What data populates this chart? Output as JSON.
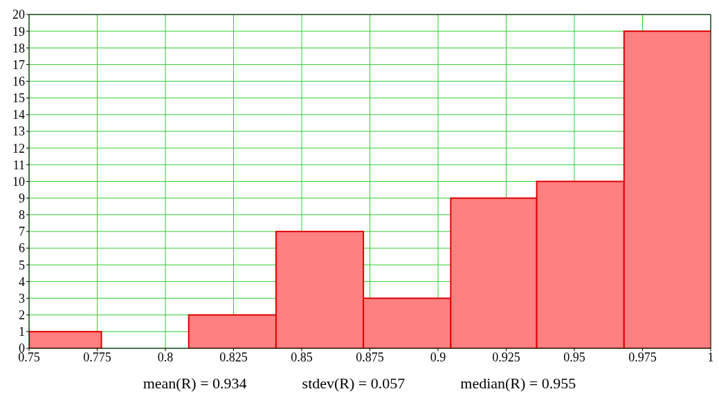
{
  "chart_data": {
    "type": "histogram",
    "bins": [
      0.75,
      0.7765,
      0.8085,
      0.8405,
      0.8725,
      0.9045,
      0.936,
      0.968,
      1
    ],
    "values": [
      1,
      0,
      2,
      7,
      3,
      9,
      10,
      19
    ],
    "color": "#ff8080",
    "xlim": [
      0.75,
      1
    ],
    "xticks": [
      0.75,
      0.775,
      0.8,
      0.825,
      0.85,
      0.875,
      0.9,
      0.925,
      0.95,
      0.975,
      1
    ],
    "ylim": [
      0,
      20
    ],
    "yticks": [
      0,
      1,
      2,
      3,
      4,
      5,
      6,
      7,
      8,
      9,
      10,
      11,
      12,
      13,
      14,
      15,
      16,
      17,
      18,
      19,
      20
    ],
    "grid": true,
    "annotations": [
      "mean(R) = 0.934",
      "stdev(R) = 0.057",
      "median(R) = 0.955"
    ]
  }
}
